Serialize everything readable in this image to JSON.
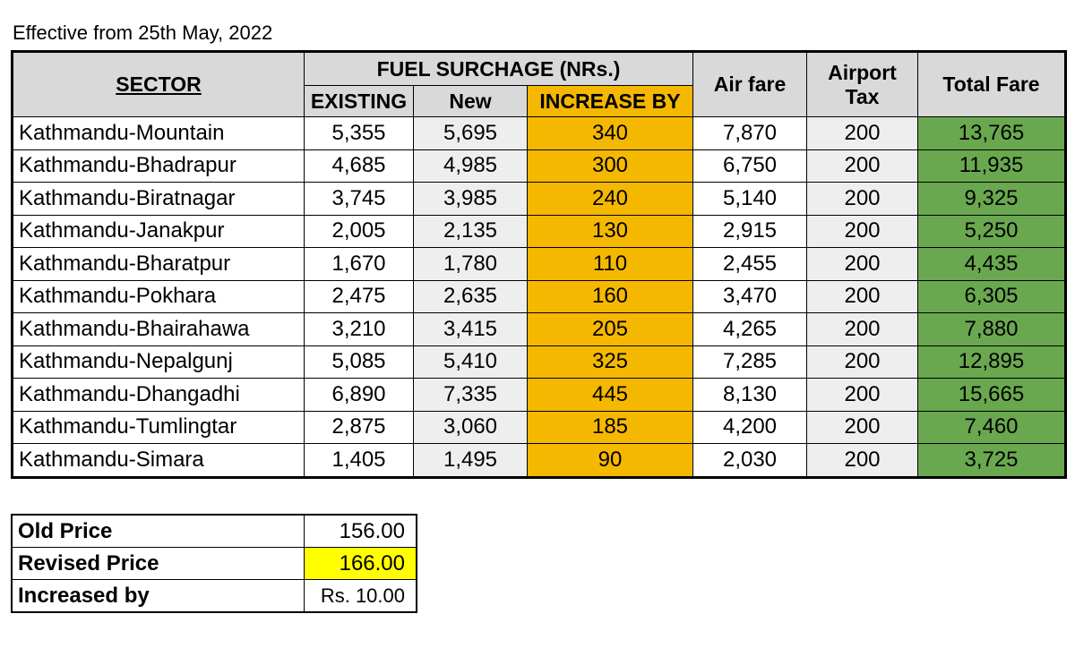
{
  "effective_text": "Effective from 25th May, 2022",
  "headers": {
    "sector": "SECTOR",
    "fuel_surcharge": "FUEL SURCHAGE (NRs.)",
    "existing": "EXISTING",
    "new": "New",
    "increase_by": "INCREASE BY",
    "air_fare": "Air fare",
    "airport_tax_line1": "Airport",
    "airport_tax_line2": "Tax",
    "total_fare": "Total Fare"
  },
  "rows": [
    {
      "sector": "Kathmandu-Mountain",
      "existing": "5,355",
      "new": "5,695",
      "increase": "340",
      "air_fare": "7,870",
      "tax": "200",
      "total": "13,765"
    },
    {
      "sector": "Kathmandu-Bhadrapur",
      "existing": "4,685",
      "new": "4,985",
      "increase": "300",
      "air_fare": "6,750",
      "tax": "200",
      "total": "11,935"
    },
    {
      "sector": "Kathmandu-Biratnagar",
      "existing": "3,745",
      "new": "3,985",
      "increase": "240",
      "air_fare": "5,140",
      "tax": "200",
      "total": "9,325"
    },
    {
      "sector": "Kathmandu-Janakpur",
      "existing": "2,005",
      "new": "2,135",
      "increase": "130",
      "air_fare": "2,915",
      "tax": "200",
      "total": "5,250"
    },
    {
      "sector": "Kathmandu-Bharatpur",
      "existing": "1,670",
      "new": "1,780",
      "increase": "110",
      "air_fare": "2,455",
      "tax": "200",
      "total": "4,435"
    },
    {
      "sector": "Kathmandu-Pokhara",
      "existing": "2,475",
      "new": "2,635",
      "increase": "160",
      "air_fare": "3,470",
      "tax": "200",
      "total": "6,305"
    },
    {
      "sector": "Kathmandu-Bhairahawa",
      "existing": "3,210",
      "new": "3,415",
      "increase": "205",
      "air_fare": "4,265",
      "tax": "200",
      "total": "7,880"
    },
    {
      "sector": "Kathmandu-Nepalgunj",
      "existing": "5,085",
      "new": "5,410",
      "increase": "325",
      "air_fare": "7,285",
      "tax": "200",
      "total": "12,895"
    },
    {
      "sector": "Kathmandu-Dhangadhi",
      "existing": "6,890",
      "new": "7,335",
      "increase": "445",
      "air_fare": "8,130",
      "tax": "200",
      "total": "15,665"
    },
    {
      "sector": "Kathmandu-Tumlingtar",
      "existing": "2,875",
      "new": "3,060",
      "increase": "185",
      "air_fare": "4,200",
      "tax": "200",
      "total": "7,460"
    },
    {
      "sector": "Kathmandu-Simara",
      "existing": "1,405",
      "new": "1,495",
      "increase": "90",
      "air_fare": "2,030",
      "tax": "200",
      "total": "3,725"
    }
  ],
  "price": {
    "old_label": "Old Price",
    "old_value": "156.00",
    "revised_label": "Revised Price",
    "revised_value": "166.00",
    "increased_label": "Increased by",
    "increased_value": "Rs. 10.00"
  },
  "colors": {
    "increase_fill": "#f5b800",
    "total_fill": "#6aa84f",
    "revised_fill": "#ffff00",
    "header_fill": "#d9d9d9"
  }
}
